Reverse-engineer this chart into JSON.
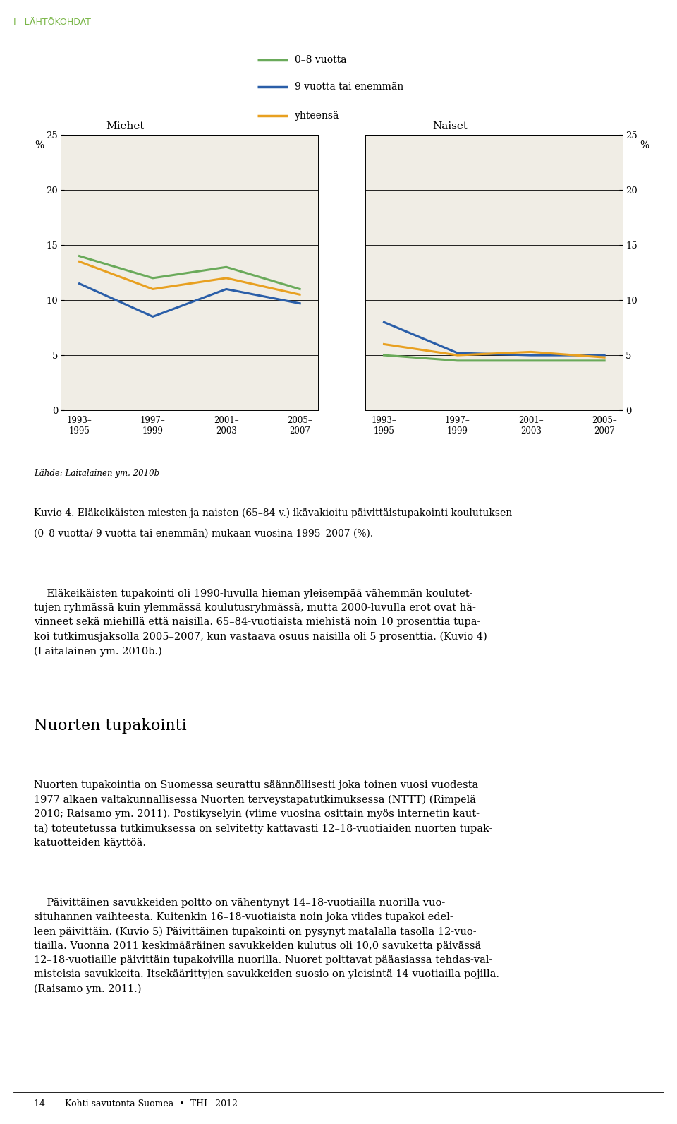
{
  "x_labels_top": [
    "1993–",
    "1997–",
    "2001–",
    "2005–"
  ],
  "x_labels_bot": [
    "1995",
    "1999",
    "2003",
    "2007"
  ],
  "x_positions": [
    0,
    1,
    2,
    3
  ],
  "men_green": [
    14.0,
    12.0,
    13.0,
    11.0
  ],
  "men_blue": [
    11.5,
    8.5,
    11.0,
    9.7
  ],
  "men_orange": [
    13.5,
    11.0,
    12.0,
    10.5
  ],
  "women_green": [
    5.0,
    4.5,
    4.5,
    4.5
  ],
  "women_blue": [
    8.0,
    5.2,
    5.0,
    5.0
  ],
  "women_orange": [
    6.0,
    5.0,
    5.3,
    4.8
  ],
  "green_color": "#6aaa5a",
  "blue_color": "#2a5ea8",
  "orange_color": "#e8a020",
  "legend_labels": [
    "0–8 vuotta",
    "9 vuotta tai enemmän",
    "yhteensä"
  ],
  "title_men": "Miehet",
  "title_women": "Naiset",
  "ylim": [
    0,
    25
  ],
  "yticks": [
    0,
    5,
    10,
    15,
    20,
    25
  ],
  "source_text": "Lähde: Laitalainen ym. 2010b",
  "caption_line1": "Kuvio 4. Eläkeikäisten miesten ja naisten (65–84-v.) ikävakioitu päivittäistupakointi koulutuksen",
  "caption_line2": "(0–8 vuotta/ 9 vuotta tai enemmän) mukaan vuosina 1995–2007 (%).",
  "section_header": "I   LÄHTÖKOHDAT",
  "header_color": "#7ab648",
  "body_bold_italic_text": "Eläkeikäisten tupakointi oli",
  "body_text_1a": "    Eläkeikäisten tupakointi oli 1990-luvulla hieman yleisempää vähemmän koulutet-",
  "body_text_1b": "tujen ryhmässä kuin ylemmässä koulutusryhmässä, mutta 2000-luvulla erot ovat hä-",
  "body_text_1c": "vinneet sekä miehillä että naisilla. 65–84-vuotiaista miehistä noin 10 prosenttia tupa-",
  "body_text_1d": "koi tutkimusjaksolla 2005–2007, kun vastaava osuus naisilla oli 5 prosenttia. (Kuvio 4)",
  "body_text_1e": "(Laitalainen ym. 2010b.)",
  "section_header2": "Nuorten tupakointi",
  "body_text_2": "Nuorten tupakointia on Suomessa seurattu säännöllisesti joka toinen vuosi vuodesta\n1977 alkaen valtakunnallisessa Nuorten terveystapatutkimuksessa (NTTT) (Rimpelä\n2010; Raisamo ym. 2011). Postikyselyin (viime vuosina osittain myös internetin kaut-\nta) toteutetussa tutkimuksessa on selvitetty kattavasti 12–18-vuotiaiden nuorten tupak-\nkatuotteiden käyttöä.",
  "body_text_3": "    Päivittäinen savukkeiden poltto on vähentynyt 14–18-vuotiailla nuorilla vuo-\nsituhannen vaihteesta. Kuitenkin 16–18-vuotiaista noin joka viides tupakoi edel-\nleen päivittäin. (Kuvio 5) Päivittäinen tupakointi on pysynyt matalalla tasolla 12-vuo-\ntiailla. Vuonna 2011 keskimääräinen savukkeiden kulutus oli 10,0 savuketta päivässä\n12–18-vuotiaille päivittäin tupakoivilla nuorilla. Nuoret polttavat pääasiassa tehdas-val-\nmisteisia savukkeita. Itsekäärittyjen savukkeiden suosio on yleisintä 14-vuotiailla pojilla.\n(Raisamo ym. 2011.)",
  "footer_text": "14       Kohti savutonta Suomea  •  THL  2012",
  "plot_bg_color": "#f0ede5",
  "line_width": 2.2
}
